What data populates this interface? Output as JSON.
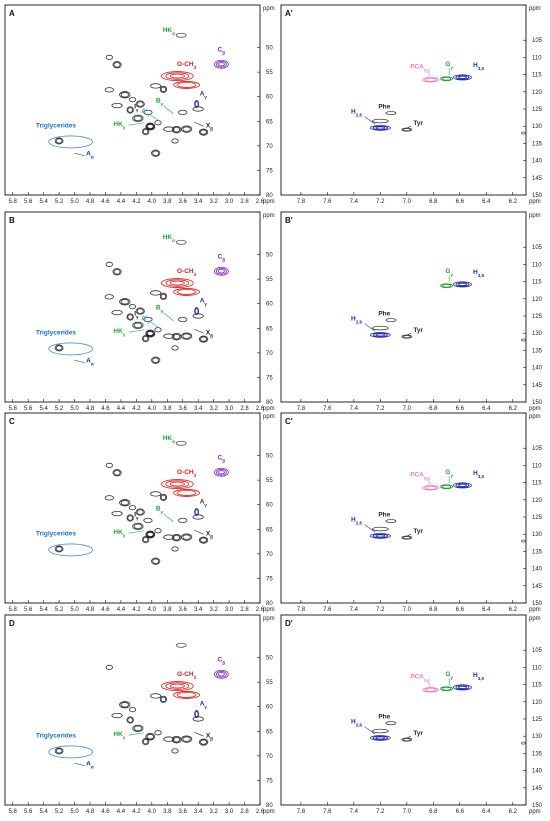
{
  "units": "ppm",
  "colors": {
    "red": "#e01818",
    "purple": "#7a1fc2",
    "darkblue": "#1a2aa8",
    "blue": "#1b6fc2",
    "green": "#1fa33a",
    "cyan": "#22b2d6",
    "pink": "#f47ac1",
    "black": "#222222",
    "lightblue": "#4a8ed0",
    "gray": "#777777"
  },
  "axes": {
    "left_x_ticks": [
      "5.8",
      "5.6",
      "5.4",
      "5.2",
      "5.0",
      "4.8",
      "4.6",
      "4.4",
      "4.2",
      "4.0",
      "3.8",
      "3.6",
      "3.4",
      "3.2",
      "3.0",
      "2.8",
      "2.6"
    ],
    "left_y_ticks": [
      "50",
      "55",
      "60",
      "65",
      "70",
      "75",
      "80"
    ],
    "right_x_ticks": [
      "7.8",
      "7.6",
      "7.4",
      "7.2",
      "7.0",
      "6.8",
      "6.6",
      "6.4",
      "6.2"
    ],
    "right_y_ticks": [
      "105",
      "110",
      "115",
      "120",
      "125",
      "130",
      "135",
      "140",
      "145",
      "150"
    ]
  },
  "panels": [
    {
      "id": "A",
      "side": "left",
      "labels": [
        {
          "text": "HK",
          "sub": "α",
          "color": "green"
        },
        {
          "text": "C",
          "sub": "β",
          "color": "purple"
        },
        {
          "text": "O-CH",
          "sub": "3",
          "color": "red"
        },
        {
          "text": "A",
          "sub": "γ",
          "color": "darkblue"
        },
        {
          "text": "B",
          "sub": "γ",
          "color": "green"
        },
        {
          "text": "A'",
          "sub": "γ",
          "color": "cyan"
        },
        {
          "text": "I",
          "sub": "γ",
          "color": "black"
        },
        {
          "text": "HK",
          "sub": "γ",
          "color": "green"
        },
        {
          "text": "X",
          "sub": "β",
          "color": "black"
        },
        {
          "text": "Triglycerides",
          "sub": "",
          "color": "blue"
        },
        {
          "text": "A",
          "sub": "α",
          "color": "darkblue"
        }
      ]
    },
    {
      "id": "A'",
      "side": "right",
      "labels": [
        {
          "text": "PCA",
          "sub": "γ,ε",
          "color": "pink"
        },
        {
          "text": "G",
          "sub": "γ",
          "color": "green"
        },
        {
          "text": "H",
          "sub": "3,5",
          "color": "darkblue"
        },
        {
          "text": "H",
          "sub": "2,6",
          "color": "darkblue"
        },
        {
          "text": "Phe",
          "sub": "",
          "color": "black"
        },
        {
          "text": "Tyr",
          "sub": "",
          "color": "black"
        }
      ]
    },
    {
      "id": "B",
      "side": "left",
      "labels": [
        {
          "text": "HK",
          "sub": "α",
          "color": "green"
        },
        {
          "text": "C",
          "sub": "β",
          "color": "purple"
        },
        {
          "text": "O-CH",
          "sub": "3",
          "color": "red"
        },
        {
          "text": "A",
          "sub": "γ",
          "color": "darkblue"
        },
        {
          "text": "B",
          "sub": "γ",
          "color": "green"
        },
        {
          "text": "A'",
          "sub": "γ",
          "color": "cyan"
        },
        {
          "text": "I",
          "sub": "γ",
          "color": "black"
        },
        {
          "text": "HK",
          "sub": "γ",
          "color": "green"
        },
        {
          "text": "X",
          "sub": "β",
          "color": "black"
        },
        {
          "text": "Triglycerides",
          "sub": "",
          "color": "blue"
        },
        {
          "text": "A",
          "sub": "α",
          "color": "darkblue"
        }
      ]
    },
    {
      "id": "B'",
      "side": "right",
      "labels": [
        {
          "text": "G",
          "sub": "γ",
          "color": "green"
        },
        {
          "text": "H",
          "sub": "3,5",
          "color": "darkblue"
        },
        {
          "text": "H",
          "sub": "2,6",
          "color": "darkblue"
        },
        {
          "text": "Phe",
          "sub": "",
          "color": "black"
        },
        {
          "text": "Tyr",
          "sub": "",
          "color": "black"
        }
      ]
    },
    {
      "id": "C",
      "side": "left",
      "labels": [
        {
          "text": "HK",
          "sub": "α",
          "color": "green"
        },
        {
          "text": "C",
          "sub": "β",
          "color": "purple"
        },
        {
          "text": "O-CH",
          "sub": "3",
          "color": "red"
        },
        {
          "text": "A",
          "sub": "γ",
          "color": "darkblue"
        },
        {
          "text": "B",
          "sub": "γ",
          "color": "green"
        },
        {
          "text": "I",
          "sub": "γ",
          "color": "black"
        },
        {
          "text": "HK",
          "sub": "γ",
          "color": "green"
        },
        {
          "text": "X",
          "sub": "β",
          "color": "black"
        },
        {
          "text": "Triglycerides",
          "sub": "",
          "color": "blue"
        }
      ]
    },
    {
      "id": "C'",
      "side": "right",
      "labels": [
        {
          "text": "PCA",
          "sub": "γ,ε",
          "color": "pink"
        },
        {
          "text": "G",
          "sub": "γ",
          "color": "green"
        },
        {
          "text": "H",
          "sub": "3,5",
          "color": "darkblue"
        },
        {
          "text": "H",
          "sub": "2,6",
          "color": "darkblue"
        },
        {
          "text": "Phe",
          "sub": "",
          "color": "black"
        },
        {
          "text": "Tyr",
          "sub": "",
          "color": "black"
        }
      ]
    },
    {
      "id": "D",
      "side": "left",
      "labels": [
        {
          "text": "C",
          "sub": "β",
          "color": "purple"
        },
        {
          "text": "O-CH",
          "sub": "3",
          "color": "red"
        },
        {
          "text": "A",
          "sub": "γ",
          "color": "darkblue"
        },
        {
          "text": "HK",
          "sub": "γ",
          "color": "green"
        },
        {
          "text": "X",
          "sub": "β",
          "color": "black"
        },
        {
          "text": "Triglycerides",
          "sub": "",
          "color": "blue"
        },
        {
          "text": "A",
          "sub": "α",
          "color": "darkblue"
        }
      ]
    },
    {
      "id": "D'",
      "side": "right",
      "labels": [
        {
          "text": "PCA",
          "sub": "γ,ε",
          "color": "pink"
        },
        {
          "text": "G",
          "sub": "γ",
          "color": "green"
        },
        {
          "text": "H",
          "sub": "3,5",
          "color": "darkblue"
        },
        {
          "text": "H",
          "sub": "2,6",
          "color": "darkblue"
        },
        {
          "text": "Phe",
          "sub": "",
          "color": "black"
        },
        {
          "text": "Tyr",
          "sub": "",
          "color": "black"
        }
      ]
    }
  ]
}
